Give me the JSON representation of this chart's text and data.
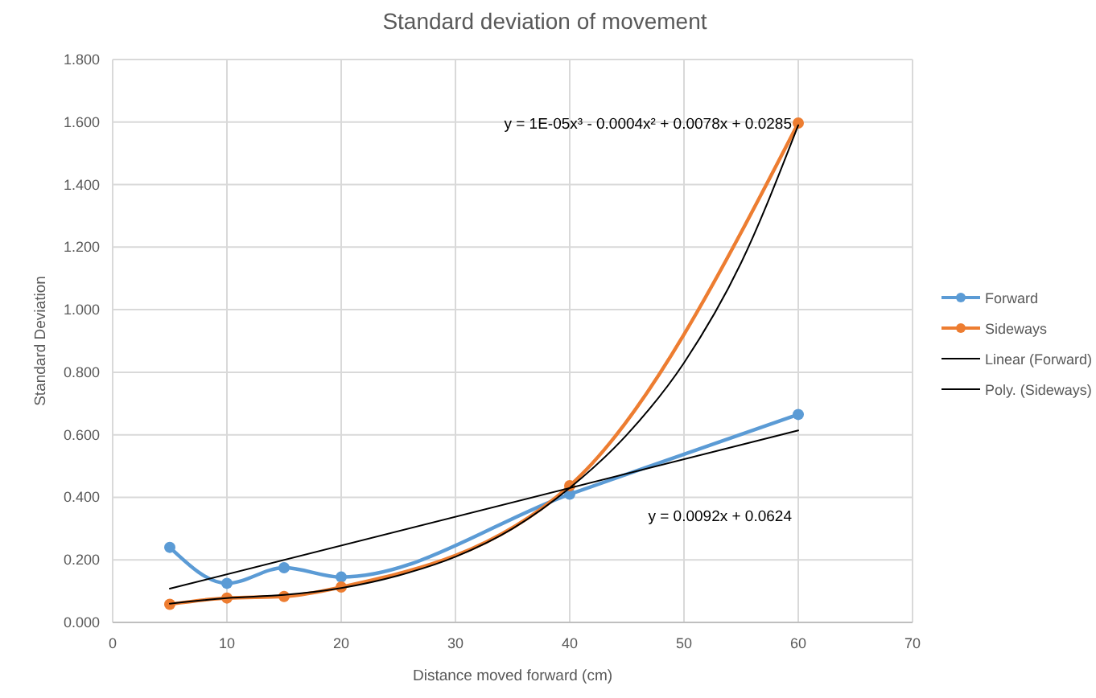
{
  "chart_data": {
    "type": "line",
    "title": "Standard deviation of movement",
    "xlabel": "Distance moved forward (cm)",
    "ylabel": "Standard Deviation",
    "xlim": [
      0,
      70
    ],
    "xticks": [
      0,
      10,
      20,
      30,
      40,
      50,
      60,
      70
    ],
    "ylim": [
      0,
      1.8
    ],
    "yticks": [
      {
        "value": 0,
        "label": "0.000"
      },
      {
        "value": 0.2,
        "label": "0.200"
      },
      {
        "value": 0.4,
        "label": "0.400"
      },
      {
        "value": 0.6,
        "label": "0.600"
      },
      {
        "value": 0.8,
        "label": "0.800"
      },
      {
        "value": 1,
        "label": "1.000"
      },
      {
        "value": 1.2,
        "label": "1.200"
      },
      {
        "value": 1.4,
        "label": "1.400"
      },
      {
        "value": 1.6,
        "label": "1.600"
      },
      {
        "value": 1.8,
        "label": "1.800"
      }
    ],
    "grid": true,
    "legend": "right",
    "series": [
      {
        "name": "Forward",
        "color": "#5b9bd5",
        "marker": "circle",
        "x": [
          5,
          10,
          15,
          20,
          40,
          60
        ],
        "values": [
          0.24,
          0.125,
          0.175,
          0.145,
          0.41,
          0.665
        ]
      },
      {
        "name": "Sideways",
        "color": "#ed7d31",
        "marker": "circle",
        "x": [
          5,
          10,
          15,
          20,
          40,
          60
        ],
        "values": [
          0.058,
          0.078,
          0.083,
          0.113,
          0.437,
          1.597
        ]
      },
      {
        "name": "Linear (Forward)",
        "color": "#000000",
        "marker": "none",
        "x": [
          5,
          60
        ],
        "values": [
          0.108,
          0.614
        ]
      },
      {
        "name": "Poly. (Sideways)",
        "color": "#000000",
        "marker": "none",
        "x": [
          5,
          10,
          15,
          20,
          25,
          30,
          35,
          40,
          45,
          50,
          55,
          60
        ],
        "values": [
          0.06,
          0.078,
          0.088,
          0.11,
          0.15,
          0.21,
          0.3,
          0.43,
          0.6,
          0.83,
          1.15,
          1.59
        ]
      }
    ],
    "annotations": [
      "y = 1E-05x³ - 0.0004x² + 0.0078x + 0.0285",
      "y = 0.0092x + 0.0624"
    ]
  }
}
